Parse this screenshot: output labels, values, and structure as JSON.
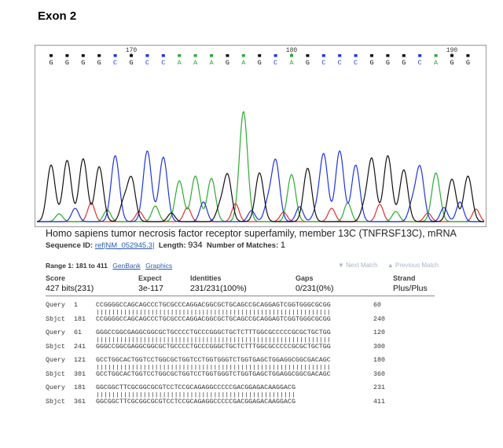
{
  "title": "Exon 2",
  "chromatogram": {
    "bases": [
      "G",
      "G",
      "G",
      "G",
      "C",
      "G",
      "C",
      "C",
      "A",
      "A",
      "A",
      "G",
      "A",
      "G",
      "C",
      "A",
      "G",
      "C",
      "C",
      "C",
      "G",
      "G",
      "G",
      "C",
      "A",
      "G",
      "G"
    ],
    "position_labels": [
      "170",
      "180",
      "190"
    ],
    "colors": {
      "A": "#2eaa34",
      "C": "#1f35d8",
      "G": "#111111",
      "T": "#e03030"
    }
  },
  "description": "Homo sapiens tumor necrosis factor receptor superfamily, member 13C (TNFRSF13C), mRNA",
  "meta": {
    "seqid_label": "Sequence ID:",
    "seqid_value": "ref|NM_052945.3|",
    "length_label": "Length:",
    "length_value": "934",
    "matches_label": "Number of Matches:",
    "matches_value": "1"
  },
  "range": {
    "label": "Range 1: 181 to 411",
    "genbank": "GenBank",
    "graphics": "Graphics",
    "next_match": "▼ Next Match",
    "prev_match": "▲ Previous Match"
  },
  "stats": {
    "headers": [
      "Score",
      "Expect",
      "Identities",
      "Gaps",
      "Strand"
    ],
    "values": [
      "427 bits(231)",
      "3e-117",
      "231/231(100%)",
      "0/231(0%)",
      "Plus/Plus"
    ]
  },
  "alignment": [
    {
      "q_label": "Query",
      "q_start": "1",
      "q_seq": "CCGGGGCCAGCAGCCCTGCGCCCAGGACGGCGCTGCAGCCGCAGGAGTCGGTGGGCGCGG",
      "q_end": "60",
      "s_label": "Sbjct",
      "s_start": "181",
      "s_seq": "CCGGGGCCAGCAGCCCTGCGCCCAGGACGGCGCTGCAGCCGCAGGAGTCGGTGGGCGCGG",
      "s_end": "240",
      "bars": "||||||||||||||||||||||||||||||||||||||||||||||||||||||||||||"
    },
    {
      "q_label": "Query",
      "q_start": "61",
      "q_seq": "GGGCCGGCGAGGCGGCGCTGCCCCTGCCCGGGCTGCTCTTTGGCGCCCCCGCGCTGCTGG",
      "q_end": "120",
      "s_label": "Sbjct",
      "s_start": "241",
      "s_seq": "GGGCCGGCGAGGCGGCGCTGCCCCTGCCCGGGCTGCTCTTTGGCGCCCCCGCGCTGCTGG",
      "s_end": "300",
      "bars": "||||||||||||||||||||||||||||||||||||||||||||||||||||||||||||"
    },
    {
      "q_label": "Query",
      "q_start": "121",
      "q_seq": "GCCTGGCACTGGTCCTGGCGCTGGTCCTGGTGGGTCTGGTGAGCTGGAGGCGGCGACAGC",
      "q_end": "180",
      "s_label": "Sbjct",
      "s_start": "301",
      "s_seq": "GCCTGGCACTGGTCCTGGCGCTGGTCCTGGTGGGTCTGGTGAGCTGGAGGCGGCGACAGC",
      "s_end": "360",
      "bars": "||||||||||||||||||||||||||||||||||||||||||||||||||||||||||||"
    },
    {
      "q_label": "Query",
      "q_start": "181",
      "q_seq": "GGCGGCTTCGCGGCGCGTCCTCCGCAGAGGCCCCCGACGGAGACAAGGACG",
      "q_end": "231",
      "s_label": "Sbjct",
      "s_start": "361",
      "s_seq": "GGCGGCTTCGCGGCGCGTCCTCCGCAGAGGCCCCCGACGGAGACAAGGACG",
      "s_end": "411",
      "bars": "|||||||||||||||||||||||||||||||||||||||||||||||||||"
    }
  ]
}
